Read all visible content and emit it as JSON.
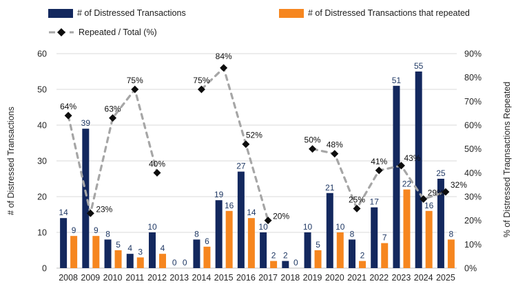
{
  "legend": {
    "items": [
      {
        "label": "# of Distressed Transactions",
        "swatch": "navy-square",
        "color": "#13285E"
      },
      {
        "label": "# of Distressed Transactions that repeated",
        "swatch": "orange-square",
        "color": "#F6861F"
      },
      {
        "label": "Repeated / Total (%)",
        "swatch": "dashed-line-diamond",
        "color": "#A6A6A6"
      }
    ]
  },
  "chart_data": {
    "type": "combo-bar-line",
    "categories": [
      "2008",
      "2009",
      "2010",
      "2011",
      "2012",
      "2013",
      "2014",
      "2015",
      "2016",
      "2017",
      "2018",
      "2019",
      "2020",
      "2021",
      "2022",
      "2023",
      "2024",
      "2025"
    ],
    "series": [
      {
        "name": "# of Distressed Transactions",
        "type": "bar",
        "axis": "left",
        "color": "#13285E",
        "values": [
          14,
          39,
          8,
          4,
          10,
          0,
          8,
          19,
          27,
          10,
          2,
          10,
          21,
          8,
          17,
          51,
          55,
          25
        ]
      },
      {
        "name": "# of Distressed Transactions that repeated",
        "type": "bar",
        "axis": "left",
        "color": "#F6861F",
        "values": [
          9,
          9,
          5,
          3,
          4,
          0,
          6,
          16,
          14,
          2,
          0,
          5,
          10,
          2,
          7,
          22,
          16,
          8
        ]
      },
      {
        "name": "Repeated / Total (%)",
        "type": "line",
        "axis": "right",
        "color": "#A6A6A6",
        "marker": "diamond",
        "marker_color": "#0d0d0d",
        "values": [
          64,
          23,
          63,
          75,
          40,
          null,
          75,
          84,
          52,
          20,
          null,
          50,
          48,
          25,
          41,
          43,
          29,
          32
        ],
        "point_labels": [
          "64%",
          "23%",
          "63%",
          "75%",
          "40%",
          null,
          "75%",
          "84%",
          "52%",
          "20%",
          null,
          "50%",
          "48%",
          "25%",
          "41%",
          "43%",
          "29%",
          "32%"
        ]
      }
    ],
    "left_axis": {
      "title": "# of Distressed Transactions",
      "min": 0,
      "max": 60,
      "step": 10,
      "tick_labels": [
        "0",
        "10",
        "20",
        "30",
        "40",
        "50",
        "60"
      ]
    },
    "right_axis": {
      "title": "% of Distressed Traqnsactions Repeated",
      "min": 0,
      "max": 90,
      "step": 10,
      "tick_labels": [
        "0%",
        "10%",
        "20%",
        "30%",
        "40%",
        "50%",
        "60%",
        "70%",
        "80%",
        "90%"
      ]
    },
    "grid": "horizontal",
    "gridline_color": "#D9D9D9",
    "baseline_color": "#BFBFBF",
    "legend_position": "top",
    "bar_label_color": "#1F3864",
    "pct_label_color": "#0d0d0d"
  }
}
